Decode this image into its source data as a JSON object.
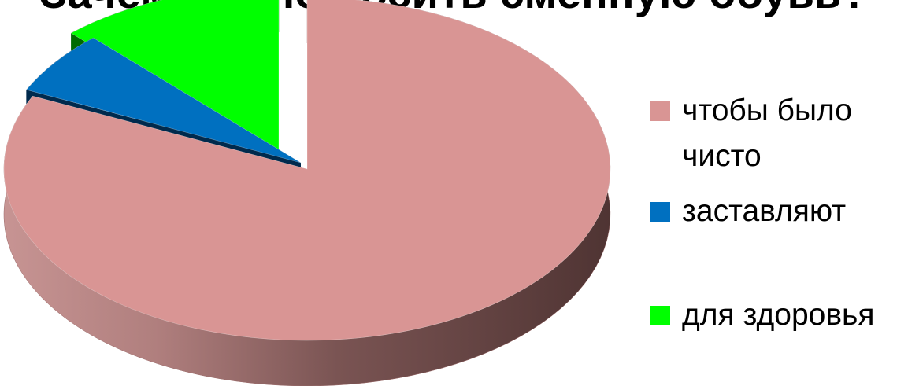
{
  "chart_data": {
    "type": "pie",
    "title": "Зачем нужно носить сменную обувь?",
    "categories": [
      "чтобы было чисто",
      "заставляют",
      "для здоровья"
    ],
    "values": [
      82,
      6,
      12
    ],
    "colors": {
      "чтобы было чисто": "#d99594",
      "заставляют": "#0070c0",
      "для здоровья": "#00ff00"
    },
    "style": "3d-exploded",
    "legend_position": "right"
  }
}
